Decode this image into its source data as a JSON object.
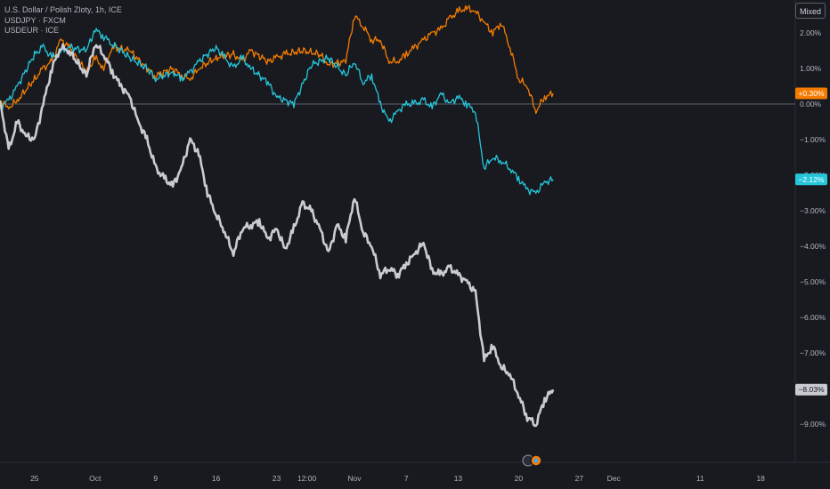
{
  "legend": {
    "main": "U.S. Dollar / Polish Zloty, 1h, ICE",
    "s2": "USDJPY · FXCM",
    "s3": "USDEUR · ICE"
  },
  "toolbar": {
    "mode_label": "Mixed"
  },
  "colors": {
    "bg": "#181a20",
    "usdpln": "#c9cbd1",
    "usdjpy": "#f57c00",
    "usdeur": "#26c6da"
  },
  "chart_data": {
    "type": "line",
    "title": "U.S. Dollar / Polish Zloty, 1h, ICE",
    "xlabel": "",
    "ylabel": "",
    "y_unit": "%",
    "ylim": [
      -9.8,
      3.0
    ],
    "xlim": [
      "2023-09-21",
      "2023-12-22"
    ],
    "x_ticks": [
      {
        "label": "25",
        "date": "2023-09-25"
      },
      {
        "label": "Oct",
        "date": "2023-10-02"
      },
      {
        "label": "9",
        "date": "2023-10-09"
      },
      {
        "label": "16",
        "date": "2023-10-16"
      },
      {
        "label": "23",
        "date": "2023-10-23"
      },
      {
        "label": "12:00",
        "date": "2023-10-26T12:00"
      },
      {
        "label": "Nov",
        "date": "2023-11-01"
      },
      {
        "label": "7",
        "date": "2023-11-07"
      },
      {
        "label": "13",
        "date": "2023-11-13"
      },
      {
        "label": "20",
        "date": "2023-11-20"
      },
      {
        "label": "27",
        "date": "2023-11-27"
      },
      {
        "label": "Dec",
        "date": "2023-12-01"
      },
      {
        "label": "11",
        "date": "2023-12-11"
      },
      {
        "label": "18",
        "date": "2023-12-18"
      }
    ],
    "y_ticks": [
      "2.00%",
      "1.00%",
      "0.00%",
      "−1.00%",
      "−2.00%",
      "−3.00%",
      "−4.00%",
      "−5.00%",
      "−6.00%",
      "−7.00%",
      "−8.00%",
      "−9.00%"
    ],
    "y_tick_values": [
      2,
      1,
      0,
      -1,
      -2,
      -3,
      -4,
      -5,
      -6,
      -7,
      -8,
      -9
    ],
    "baseline": 0,
    "series": [
      {
        "name": "USDJPY · FXCM",
        "color": "#f57c00",
        "last_label": "+0.30%",
        "points": [
          [
            "2023-09-21",
            0.1
          ],
          [
            "2023-09-22",
            -0.1
          ],
          [
            "2023-09-23",
            0.1
          ],
          [
            "2023-09-25",
            0.7
          ],
          [
            "2023-09-26",
            1.0
          ],
          [
            "2023-09-27",
            1.2
          ],
          [
            "2023-09-28",
            1.8
          ],
          [
            "2023-09-29",
            1.6
          ],
          [
            "2023-10-01",
            0.9
          ],
          [
            "2023-10-02",
            1.3
          ],
          [
            "2023-10-03",
            1.0
          ],
          [
            "2023-10-04",
            1.6
          ],
          [
            "2023-10-06",
            1.5
          ],
          [
            "2023-10-08",
            1.0
          ],
          [
            "2023-10-09",
            0.8
          ],
          [
            "2023-10-11",
            1.0
          ],
          [
            "2023-10-12",
            0.8
          ],
          [
            "2023-10-13",
            0.7
          ],
          [
            "2023-10-14",
            1.0
          ],
          [
            "2023-10-16",
            1.3
          ],
          [
            "2023-10-18",
            1.4
          ],
          [
            "2023-10-19",
            1.2
          ],
          [
            "2023-10-20",
            1.5
          ],
          [
            "2023-10-22",
            1.2
          ],
          [
            "2023-10-23",
            1.3
          ],
          [
            "2023-10-24",
            1.4
          ],
          [
            "2023-10-26",
            1.5
          ],
          [
            "2023-10-28",
            1.4
          ],
          [
            "2023-10-29",
            1.1
          ],
          [
            "2023-10-31",
            1.2
          ],
          [
            "2023-11-01",
            2.5
          ],
          [
            "2023-11-02",
            2.2
          ],
          [
            "2023-11-03",
            1.8
          ],
          [
            "2023-11-04",
            1.8
          ],
          [
            "2023-11-05",
            1.2
          ],
          [
            "2023-11-06",
            1.2
          ],
          [
            "2023-11-07",
            1.4
          ],
          [
            "2023-11-08",
            1.6
          ],
          [
            "2023-11-09",
            1.8
          ],
          [
            "2023-11-10",
            2.0
          ],
          [
            "2023-11-11",
            2.1
          ],
          [
            "2023-11-12",
            2.4
          ],
          [
            "2023-11-13",
            2.6
          ],
          [
            "2023-11-14",
            2.7
          ],
          [
            "2023-11-15",
            2.6
          ],
          [
            "2023-11-16",
            2.3
          ],
          [
            "2023-11-17",
            2.0
          ],
          [
            "2023-11-18",
            2.3
          ],
          [
            "2023-11-19",
            1.6
          ],
          [
            "2023-11-20",
            0.7
          ],
          [
            "2023-11-21",
            0.5
          ],
          [
            "2023-11-22",
            -0.2
          ],
          [
            "2023-11-23",
            0.2
          ],
          [
            "2023-11-24",
            0.3
          ]
        ]
      },
      {
        "name": "USDEUR · ICE",
        "color": "#26c6da",
        "last_label": "−2.12%",
        "points": [
          [
            "2023-09-21",
            -0.1
          ],
          [
            "2023-09-22",
            0.1
          ],
          [
            "2023-09-23",
            0.5
          ],
          [
            "2023-09-25",
            1.4
          ],
          [
            "2023-09-26",
            1.6
          ],
          [
            "2023-09-27",
            1.3
          ],
          [
            "2023-09-28",
            1.5
          ],
          [
            "2023-09-29",
            1.6
          ],
          [
            "2023-10-01",
            1.5
          ],
          [
            "2023-10-02",
            2.1
          ],
          [
            "2023-10-03",
            1.9
          ],
          [
            "2023-10-04",
            1.7
          ],
          [
            "2023-10-06",
            1.3
          ],
          [
            "2023-10-08",
            1.0
          ],
          [
            "2023-10-09",
            0.7
          ],
          [
            "2023-10-11",
            0.9
          ],
          [
            "2023-10-12",
            0.7
          ],
          [
            "2023-10-13",
            0.9
          ],
          [
            "2023-10-14",
            1.2
          ],
          [
            "2023-10-16",
            1.6
          ],
          [
            "2023-10-17",
            1.3
          ],
          [
            "2023-10-18",
            1.0
          ],
          [
            "2023-10-19",
            1.3
          ],
          [
            "2023-10-20",
            1.0
          ],
          [
            "2023-10-22",
            0.6
          ],
          [
            "2023-10-23",
            0.2
          ],
          [
            "2023-10-25",
            0.0
          ],
          [
            "2023-10-27",
            1.1
          ],
          [
            "2023-10-29",
            1.3
          ],
          [
            "2023-10-31",
            0.8
          ],
          [
            "2023-11-01",
            1.2
          ],
          [
            "2023-11-02",
            0.6
          ],
          [
            "2023-11-03",
            0.8
          ],
          [
            "2023-11-04",
            0.0
          ],
          [
            "2023-11-05",
            -0.5
          ],
          [
            "2023-11-06",
            -0.2
          ],
          [
            "2023-11-07",
            0.0
          ],
          [
            "2023-11-08",
            0.0
          ],
          [
            "2023-11-09",
            0.1
          ],
          [
            "2023-11-10",
            -0.1
          ],
          [
            "2023-11-11",
            0.3
          ],
          [
            "2023-11-12",
            0.0
          ],
          [
            "2023-11-13",
            0.2
          ],
          [
            "2023-11-14",
            0.0
          ],
          [
            "2023-11-15",
            -0.2
          ],
          [
            "2023-11-16",
            -1.8
          ],
          [
            "2023-11-17",
            -1.5
          ],
          [
            "2023-11-18",
            -1.6
          ],
          [
            "2023-11-19",
            -1.8
          ],
          [
            "2023-11-20",
            -2.1
          ],
          [
            "2023-11-21",
            -2.4
          ],
          [
            "2023-11-22",
            -2.5
          ],
          [
            "2023-11-23",
            -2.2
          ],
          [
            "2023-11-24",
            -2.12
          ]
        ]
      },
      {
        "name": "U.S. Dollar / Polish Zloty",
        "color": "#c9cbd1",
        "last_label": "−8.03%",
        "points": [
          [
            "2023-09-21",
            0.1
          ],
          [
            "2023-09-22",
            -1.3
          ],
          [
            "2023-09-23",
            -0.5
          ],
          [
            "2023-09-24",
            -0.9
          ],
          [
            "2023-09-25",
            -1.0
          ],
          [
            "2023-09-26",
            0.0
          ],
          [
            "2023-09-27",
            1.0
          ],
          [
            "2023-09-28",
            1.6
          ],
          [
            "2023-09-29",
            1.5
          ],
          [
            "2023-10-01",
            0.8
          ],
          [
            "2023-10-02",
            1.7
          ],
          [
            "2023-10-03",
            1.4
          ],
          [
            "2023-10-04",
            0.9
          ],
          [
            "2023-10-05",
            0.5
          ],
          [
            "2023-10-06",
            0.2
          ],
          [
            "2023-10-07",
            -0.5
          ],
          [
            "2023-10-08",
            -1.0
          ],
          [
            "2023-10-09",
            -1.8
          ],
          [
            "2023-10-10",
            -2.1
          ],
          [
            "2023-10-11",
            -2.3
          ],
          [
            "2023-10-12",
            -1.8
          ],
          [
            "2023-10-13",
            -1.0
          ],
          [
            "2023-10-14",
            -1.4
          ],
          [
            "2023-10-15",
            -2.5
          ],
          [
            "2023-10-16",
            -3.1
          ],
          [
            "2023-10-17",
            -3.6
          ],
          [
            "2023-10-18",
            -4.2
          ],
          [
            "2023-10-19",
            -3.5
          ],
          [
            "2023-10-20",
            -3.4
          ],
          [
            "2023-10-21",
            -3.3
          ],
          [
            "2023-10-22",
            -3.8
          ],
          [
            "2023-10-23",
            -3.5
          ],
          [
            "2023-10-24",
            -4.1
          ],
          [
            "2023-10-25",
            -3.5
          ],
          [
            "2023-10-26",
            -2.8
          ],
          [
            "2023-10-27",
            -3.0
          ],
          [
            "2023-10-28",
            -3.5
          ],
          [
            "2023-10-29",
            -4.2
          ],
          [
            "2023-10-30",
            -3.4
          ],
          [
            "2023-10-31",
            -3.8
          ],
          [
            "2023-11-01",
            -2.6
          ],
          [
            "2023-11-02",
            -3.6
          ],
          [
            "2023-11-03",
            -4.0
          ],
          [
            "2023-11-04",
            -4.8
          ],
          [
            "2023-11-05",
            -4.6
          ],
          [
            "2023-11-06",
            -4.8
          ],
          [
            "2023-11-07",
            -4.5
          ],
          [
            "2023-11-08",
            -4.2
          ],
          [
            "2023-11-09",
            -3.9
          ],
          [
            "2023-11-10",
            -4.7
          ],
          [
            "2023-11-11",
            -4.8
          ],
          [
            "2023-11-12",
            -4.6
          ],
          [
            "2023-11-13",
            -4.8
          ],
          [
            "2023-11-14",
            -5.0
          ],
          [
            "2023-11-15",
            -5.3
          ],
          [
            "2023-11-16",
            -7.2
          ],
          [
            "2023-11-17",
            -6.8
          ],
          [
            "2023-11-18",
            -7.4
          ],
          [
            "2023-11-19",
            -7.6
          ],
          [
            "2023-11-20",
            -8.2
          ],
          [
            "2023-11-21",
            -8.8
          ],
          [
            "2023-11-22",
            -9.0
          ],
          [
            "2023-11-23",
            -8.3
          ],
          [
            "2023-11-24",
            -8.03
          ]
        ]
      }
    ]
  }
}
